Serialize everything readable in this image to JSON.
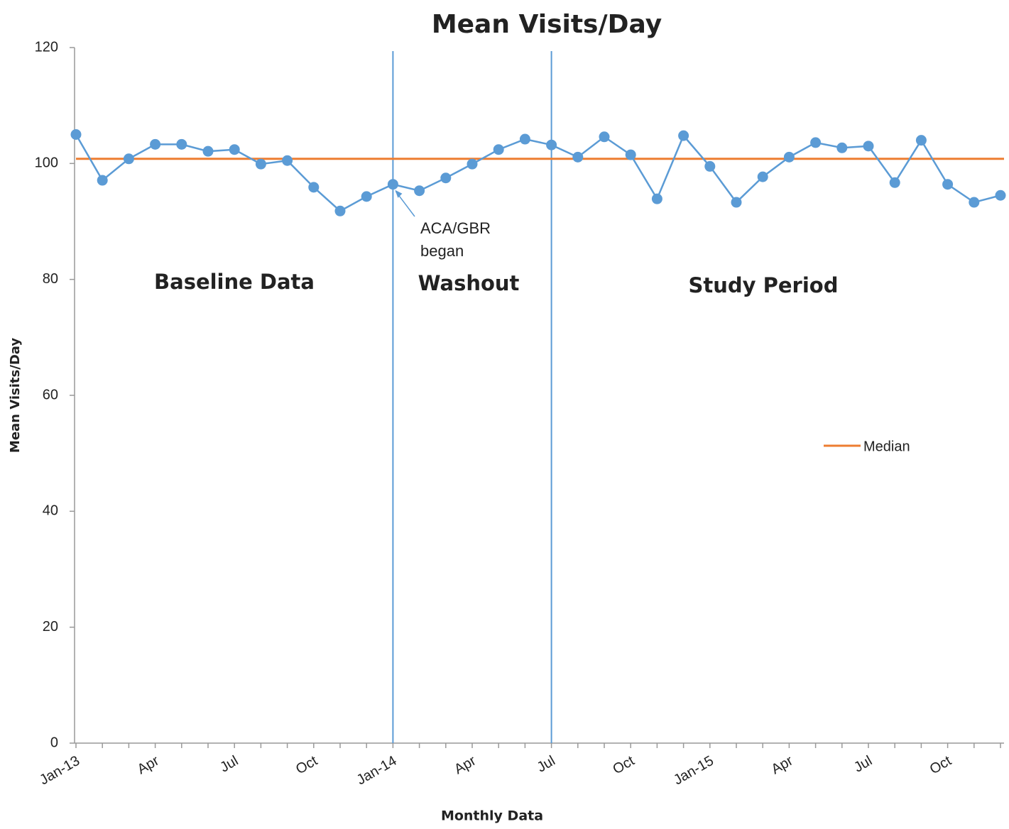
{
  "chart_data": {
    "type": "line",
    "title": "Mean Visits/Day",
    "x_label": "Monthly Data",
    "y_label": "Mean Visits/Day",
    "categories": [
      "Jan-13",
      null,
      null,
      "Apr",
      null,
      null,
      "Jul",
      null,
      null,
      "Oct",
      null,
      null,
      "Jan-14",
      null,
      null,
      "Apr",
      null,
      null,
      "Jul",
      null,
      null,
      "Oct",
      null,
      null,
      "Jan-15",
      null,
      null,
      "Apr",
      null,
      null,
      "Jul",
      null,
      null,
      "Oct",
      null,
      null
    ],
    "values": [
      105,
      97.1,
      100.8,
      103.3,
      103.3,
      102.1,
      102.4,
      99.9,
      100.5,
      95.9,
      91.8,
      94.3,
      96.4,
      95.3,
      97.5,
      99.9,
      102.4,
      104.2,
      103.2,
      101.1,
      104.6,
      101.5,
      93.9,
      104.8,
      99.5,
      93.3,
      97.7,
      101.1,
      103.6,
      102.7,
      103.0,
      96.7,
      104.0,
      96.4,
      93.3,
      94.5
    ],
    "color": "#5b9bd5",
    "median": {
      "name": "Median",
      "value": 100.8,
      "color": "#ed7d31"
    },
    "phase_lines": [
      12,
      18
    ],
    "regions": [
      "Baseline Data",
      "Washout",
      "Study Period"
    ],
    "annotation": {
      "text": [
        "ACA/GBR",
        "began"
      ],
      "point": 12
    },
    "ylim": [
      0,
      120
    ],
    "yticks": [
      0,
      20,
      40,
      60,
      80,
      100,
      120
    ],
    "grid": false,
    "legend": "right"
  }
}
